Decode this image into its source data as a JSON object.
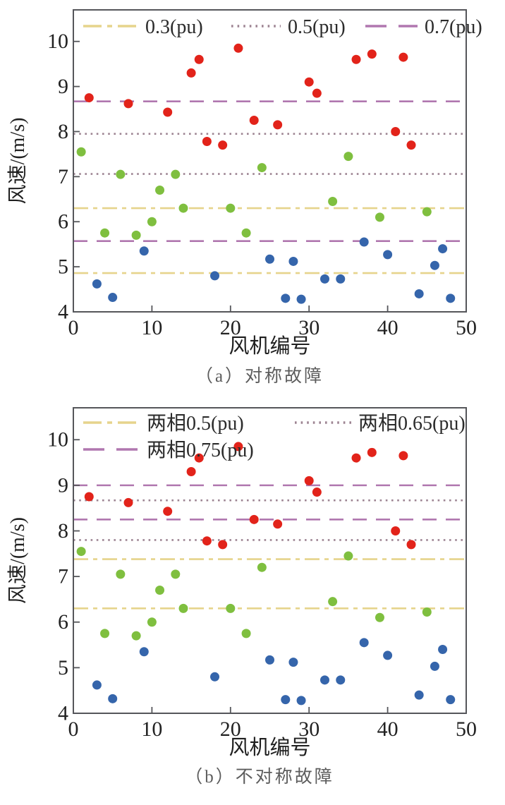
{
  "figure_captions": {
    "a": "（a）对称故障",
    "b": "（b）不对称故障"
  },
  "chart_data": [
    {
      "type": "scatter",
      "title": "",
      "xlabel": "风机编号",
      "ylabel": "风速/(m/s)",
      "xlim": [
        0,
        50
      ],
      "ylim": [
        4,
        10.7
      ],
      "xticks": [
        "0",
        "10",
        "20",
        "30",
        "40",
        "50"
      ],
      "yticks": [
        "4",
        "5",
        "6",
        "7",
        "8",
        "9",
        "10"
      ],
      "grid": false,
      "legend_position": "top-inside",
      "legend": [
        {
          "label": "0.3(pu)",
          "style": "dashdot",
          "color": "#e6d48c"
        },
        {
          "label": "0.5(pu)",
          "style": "dotted",
          "color": "#9d8492"
        },
        {
          "label": "0.7(pu)",
          "style": "dashed",
          "color": "#b077af"
        }
      ],
      "ref_lines": [
        {
          "legend": "0.3(pu)",
          "style": "dashdot",
          "color": "#e6d48c",
          "values": [
            6.3,
            4.86
          ]
        },
        {
          "legend": "0.5(pu)",
          "style": "dotted",
          "color": "#9d8492",
          "values": [
            7.95,
            7.06
          ]
        },
        {
          "legend": "0.7(pu)",
          "style": "dashed",
          "color": "#b077af",
          "values": [
            8.67,
            5.57
          ]
        }
      ],
      "series": [
        {
          "name": "high-wind-red",
          "color": "#e2231a",
          "points": [
            [
              2,
              8.75
            ],
            [
              7,
              8.62
            ],
            [
              12,
              8.43
            ],
            [
              15,
              9.3
            ],
            [
              16,
              9.6
            ],
            [
              17,
              7.78
            ],
            [
              19,
              7.7
            ],
            [
              21,
              9.85
            ],
            [
              23,
              8.25
            ],
            [
              26,
              8.15
            ],
            [
              30,
              9.1
            ],
            [
              31,
              8.85
            ],
            [
              36,
              9.6
            ],
            [
              38,
              9.72
            ],
            [
              41,
              8.0
            ],
            [
              42,
              9.65
            ],
            [
              43,
              7.7
            ]
          ]
        },
        {
          "name": "mid-wind-green",
          "color": "#7fbf3f",
          "points": [
            [
              1,
              7.55
            ],
            [
              4,
              5.75
            ],
            [
              6,
              7.05
            ],
            [
              8,
              5.7
            ],
            [
              10,
              6.0
            ],
            [
              11,
              6.7
            ],
            [
              13,
              7.05
            ],
            [
              14,
              6.3
            ],
            [
              20,
              6.3
            ],
            [
              22,
              5.75
            ],
            [
              24,
              7.2
            ],
            [
              33,
              6.45
            ],
            [
              35,
              7.45
            ],
            [
              39,
              6.1
            ],
            [
              45,
              6.22
            ]
          ]
        },
        {
          "name": "low-wind-blue",
          "color": "#3565ab",
          "points": [
            [
              3,
              4.62
            ],
            [
              5,
              4.32
            ],
            [
              9,
              5.35
            ],
            [
              18,
              4.8
            ],
            [
              25,
              5.17
            ],
            [
              27,
              4.3
            ],
            [
              28,
              5.12
            ],
            [
              29,
              4.28
            ],
            [
              32,
              4.73
            ],
            [
              34,
              4.73
            ],
            [
              37,
              5.55
            ],
            [
              40,
              5.27
            ],
            [
              44,
              4.4
            ],
            [
              46,
              5.03
            ],
            [
              47,
              5.4
            ],
            [
              48,
              4.3
            ]
          ]
        }
      ],
      "caption": "（a）对称故障"
    },
    {
      "type": "scatter",
      "title": "",
      "xlabel": "风机编号",
      "ylabel": "风速/(m/s)",
      "xlim": [
        0,
        50
      ],
      "ylim": [
        4,
        10.7
      ],
      "xticks": [
        "0",
        "10",
        "20",
        "30",
        "40",
        "50"
      ],
      "yticks": [
        "4",
        "5",
        "6",
        "7",
        "8",
        "9",
        "10"
      ],
      "grid": false,
      "legend_position": "top-inside",
      "legend": [
        {
          "label": "两相0.5(pu)",
          "style": "dashdot",
          "color": "#e6d48c"
        },
        {
          "label": "两相0.65(pu)",
          "style": "dotted",
          "color": "#9d8492"
        },
        {
          "label": "两相0.75(pu)",
          "style": "dashed",
          "color": "#b077af"
        }
      ],
      "ref_lines": [
        {
          "legend": "两相0.5(pu)",
          "style": "dashdot",
          "color": "#e6d48c",
          "values": [
            7.38,
            6.3
          ]
        },
        {
          "legend": "两相0.65(pu)",
          "style": "dotted",
          "color": "#9d8492",
          "values": [
            8.67,
            7.8
          ]
        },
        {
          "legend": "两相0.75(pu)",
          "style": "dashed",
          "color": "#b077af",
          "values": [
            9.0,
            8.25
          ]
        }
      ],
      "series": [
        {
          "name": "high-wind-red",
          "color": "#e2231a",
          "points": [
            [
              2,
              8.75
            ],
            [
              7,
              8.62
            ],
            [
              12,
              8.43
            ],
            [
              15,
              9.3
            ],
            [
              16,
              9.6
            ],
            [
              17,
              7.78
            ],
            [
              19,
              7.7
            ],
            [
              21,
              9.85
            ],
            [
              23,
              8.25
            ],
            [
              26,
              8.15
            ],
            [
              30,
              9.1
            ],
            [
              31,
              8.85
            ],
            [
              36,
              9.6
            ],
            [
              38,
              9.72
            ],
            [
              41,
              8.0
            ],
            [
              42,
              9.65
            ],
            [
              43,
              7.7
            ]
          ]
        },
        {
          "name": "mid-wind-green",
          "color": "#7fbf3f",
          "points": [
            [
              1,
              7.55
            ],
            [
              4,
              5.75
            ],
            [
              6,
              7.05
            ],
            [
              8,
              5.7
            ],
            [
              10,
              6.0
            ],
            [
              11,
              6.7
            ],
            [
              13,
              7.05
            ],
            [
              14,
              6.3
            ],
            [
              20,
              6.3
            ],
            [
              22,
              5.75
            ],
            [
              24,
              7.2
            ],
            [
              33,
              6.45
            ],
            [
              35,
              7.45
            ],
            [
              39,
              6.1
            ],
            [
              45,
              6.22
            ]
          ]
        },
        {
          "name": "low-wind-blue",
          "color": "#3565ab",
          "points": [
            [
              3,
              4.62
            ],
            [
              5,
              4.32
            ],
            [
              9,
              5.35
            ],
            [
              18,
              4.8
            ],
            [
              25,
              5.17
            ],
            [
              27,
              4.3
            ],
            [
              28,
              5.12
            ],
            [
              29,
              4.28
            ],
            [
              32,
              4.73
            ],
            [
              34,
              4.73
            ],
            [
              37,
              5.55
            ],
            [
              40,
              5.27
            ],
            [
              44,
              4.4
            ],
            [
              46,
              5.03
            ],
            [
              47,
              5.4
            ],
            [
              48,
              4.3
            ]
          ]
        }
      ],
      "caption": "（b）不对称故障"
    }
  ],
  "style_colors": {
    "frame": "#55565a",
    "tick_text": "#222222",
    "legend_text": "#2b2b2b",
    "caption_text": "#5c5c5c"
  }
}
